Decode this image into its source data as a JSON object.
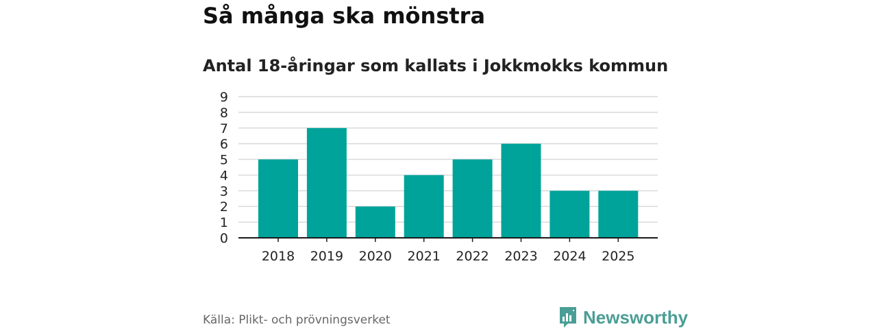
{
  "header": {
    "title": "Så många ska mönstra",
    "subtitle": "Antal 18-åringar som kallats i Jokkmokks kommun"
  },
  "footer": {
    "source": "Källa: Plikt- och prövningsverket",
    "brand": "Newsworthy"
  },
  "colors": {
    "bar": "#00a39a",
    "grid": "#d9d9d9",
    "axis": "#1a1a1a",
    "brand": "#4a9e96"
  },
  "chart_data": {
    "type": "bar",
    "categories": [
      "2018",
      "2019",
      "2020",
      "2021",
      "2022",
      "2023",
      "2024",
      "2025"
    ],
    "values": [
      5,
      7,
      2,
      4,
      5,
      6,
      3,
      3
    ],
    "title": "Så många ska mönstra",
    "subtitle": "Antal 18-åringar som kallats i Jokkmokks kommun",
    "xlabel": "",
    "ylabel": "",
    "ylim": [
      0,
      9
    ],
    "yticks": [
      0,
      1,
      2,
      3,
      4,
      5,
      6,
      7,
      8,
      9
    ],
    "grid": true
  }
}
